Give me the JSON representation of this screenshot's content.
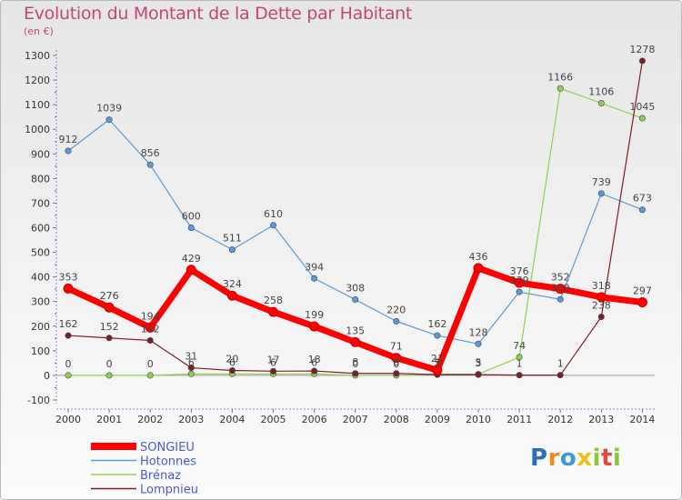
{
  "title": "Evolution du Montant de la Dette par Habitant",
  "subtitle": "(en €)",
  "logo": {
    "text": "Proxiti",
    "letters": [
      {
        "ch": "P",
        "color": "#2e6fb3"
      },
      {
        "ch": "r",
        "color": "#f28c28"
      },
      {
        "ch": "o",
        "color": "#3a9bd5"
      },
      {
        "ch": "x",
        "color": "#e8c11c"
      },
      {
        "ch": "i",
        "color": "#8cc63f"
      },
      {
        "ch": "t",
        "color": "#e5493a"
      },
      {
        "ch": "i",
        "color": "#8cc63f"
      }
    ]
  },
  "chart_data": {
    "type": "line",
    "title": "Evolution du Montant de la Dette par Habitant",
    "subtitle": "(en €)",
    "x": [
      "2000",
      "2001",
      "2002",
      "2003",
      "2004",
      "2005",
      "2006",
      "2007",
      "2008",
      "2009",
      "2010",
      "2011",
      "2012",
      "2013",
      "2014"
    ],
    "ylim": [
      -100,
      1300
    ],
    "yticks": [
      -100,
      0,
      100,
      200,
      300,
      400,
      500,
      600,
      700,
      800,
      900,
      1000,
      1100,
      1200,
      1300
    ],
    "grid": false,
    "legend_position": "bottom-left",
    "series": [
      {
        "name": "SONGIEU",
        "color": "#ff0000",
        "values": [
          353,
          276,
          194,
          429,
          324,
          258,
          199,
          135,
          71,
          21,
          436,
          376,
          352,
          318,
          297
        ],
        "labels": [
          "353",
          "276",
          "194",
          "429",
          "324",
          "258",
          "199",
          "135",
          "71",
          "21",
          "436",
          "376",
          "352",
          "318",
          "297"
        ]
      },
      {
        "name": "Hotonnes",
        "color": "#5b9bd5",
        "values": [
          912,
          1039,
          856,
          600,
          511,
          610,
          394,
          308,
          220,
          162,
          128,
          339,
          309,
          739,
          673
        ],
        "labels": [
          "912",
          "1039",
          "856",
          "600",
          "511",
          "610",
          "394",
          "308",
          "220",
          "162",
          "128",
          "339",
          "309",
          "739",
          "673"
        ]
      },
      {
        "name": "Brénaz",
        "color": "#8fd14f",
        "values": [
          0,
          0,
          0,
          6,
          6,
          6,
          6,
          0,
          0,
          5,
          5,
          74,
          1166,
          1106,
          1045
        ],
        "labels": [
          "0",
          "0",
          "0",
          "6",
          "6",
          "6",
          "6",
          "0",
          "0",
          "5",
          "5",
          "74",
          "1166",
          "1106",
          "1045"
        ]
      },
      {
        "name": "Lompnieu",
        "color": "#7b1f24",
        "values": [
          162,
          152,
          142,
          31,
          20,
          17,
          18,
          8,
          8,
          3,
          3,
          1,
          1,
          238,
          1278
        ],
        "labels": [
          "162",
          "152",
          "142",
          "31",
          "20",
          "17",
          "18",
          "8",
          "8",
          "3",
          "3",
          "1",
          "1",
          "238",
          "1278"
        ]
      }
    ]
  }
}
